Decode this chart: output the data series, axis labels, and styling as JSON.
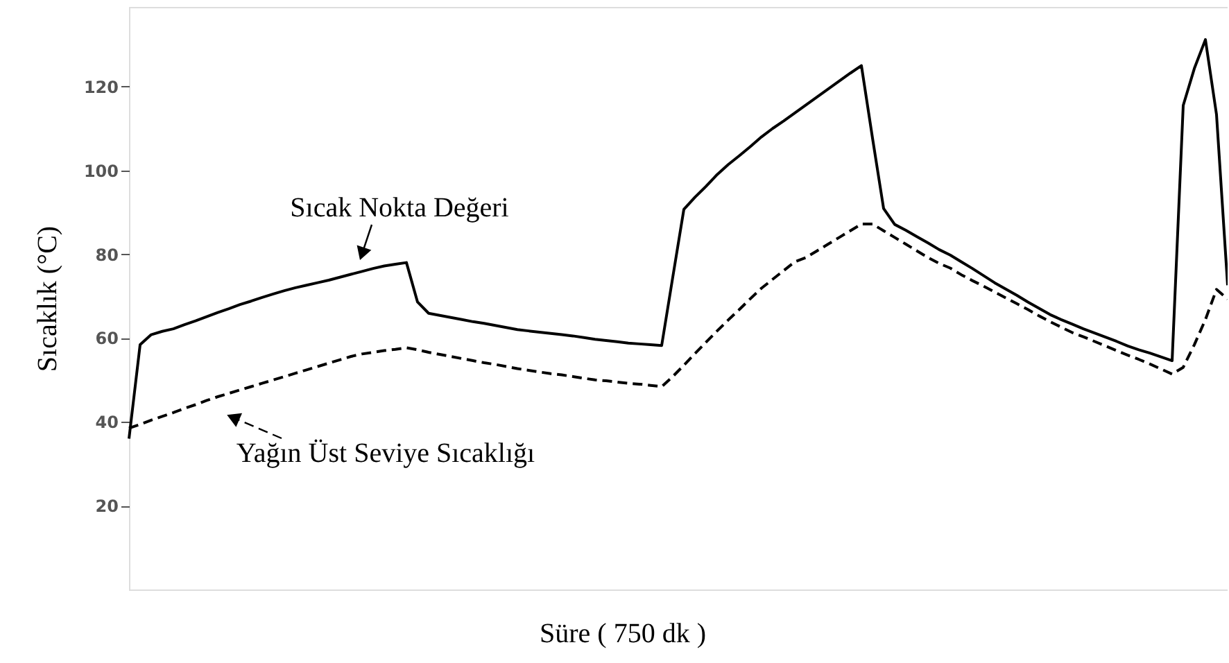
{
  "chart_data": {
    "type": "line",
    "xlabel": "Süre ( 750 dk )",
    "ylabel": "Sıcaklık  (°C)",
    "categories": [
      null,
      null,
      null,
      null,
      null,
      null,
      null,
      null,
      null,
      null,
      null,
      null,
      null,
      null,
      null,
      null,
      null,
      null,
      null,
      null,
      null,
      null,
      null,
      null,
      null,
      null,
      null,
      null,
      null,
      null,
      null,
      null,
      null,
      null,
      null,
      null,
      null,
      null,
      null,
      null,
      null,
      null,
      null,
      null,
      null,
      null,
      null,
      null,
      null,
      null,
      null,
      null,
      null,
      null,
      null,
      null,
      null,
      null,
      null,
      null,
      null,
      null,
      null,
      null,
      null,
      null,
      null,
      null,
      null,
      null,
      null,
      null,
      null,
      null,
      null,
      null,
      null,
      null,
      null,
      null,
      null,
      null,
      null,
      null,
      null,
      null,
      null,
      null,
      null,
      null,
      null,
      null,
      null,
      null,
      null,
      null,
      null,
      null,
      null,
      null
    ],
    "series": [
      {
        "name": "Sıcak Nokta Değeri",
        "color": "#000000",
        "line_style": "solid",
        "values": [
          36,
          58.4,
          60.8,
          61.6,
          62.2,
          63.2,
          64.1,
          65.1,
          66.1,
          67,
          68,
          68.8,
          69.7,
          70.5,
          71.3,
          72,
          72.6,
          73.2,
          73.8,
          74.5,
          75.2,
          75.9,
          76.6,
          77.2,
          77.6,
          78,
          68.6,
          65.9,
          65.4,
          64.9,
          64.4,
          63.9,
          63.5,
          63,
          62.5,
          62,
          61.7,
          61.4,
          61.1,
          60.8,
          60.5,
          60.1,
          59.7,
          59.4,
          59.1,
          58.8,
          58.6,
          58.4,
          58.2,
          74.5,
          90.7,
          93.6,
          96.2,
          99,
          101.4,
          103.5,
          105.7,
          108,
          110,
          111.8,
          113.7,
          115.6,
          117.5,
          119.4,
          121.3,
          123.2,
          125,
          107.7,
          90.9,
          87.1,
          85.7,
          84.2,
          82.7,
          81.1,
          79.8,
          78.2,
          76.6,
          74.9,
          73.2,
          71.7,
          70.2,
          68.6,
          67.1,
          65.6,
          64.4,
          63.3,
          62.2,
          61.2,
          60.2,
          59.2,
          58.1,
          57.2,
          56.4,
          55.5,
          54.6,
          115.5,
          124.3,
          131.2,
          113.3,
          72.6
        ]
      },
      {
        "name": "Yağın Üst Seviye Sıcaklığı",
        "color": "#000000",
        "line_style": "dashed",
        "values": [
          38.5,
          39.4,
          40.4,
          41.3,
          42.2,
          43.2,
          44.1,
          45.1,
          46,
          46.8,
          47.6,
          48.4,
          49.2,
          50,
          50.8,
          51.6,
          52.4,
          53.2,
          54,
          54.8,
          55.6,
          56.2,
          56.6,
          57,
          57.3,
          57.7,
          57.2,
          56.6,
          56.1,
          55.6,
          55.1,
          54.6,
          54.1,
          53.7,
          53.2,
          52.7,
          52.3,
          51.9,
          51.5,
          51.2,
          50.8,
          50.4,
          50,
          49.8,
          49.5,
          49.2,
          49,
          48.7,
          48.4,
          50.8,
          53.5,
          56.3,
          59,
          61.7,
          64.3,
          66.8,
          69.4,
          71.9,
          74,
          76.1,
          78.2,
          79.2,
          80.8,
          82.4,
          84,
          85.6,
          87.2,
          87.2,
          85.6,
          84,
          82.4,
          80.8,
          79.2,
          77.8,
          76.7,
          75.1,
          73.7,
          72.4,
          71,
          69.6,
          68.2,
          66.8,
          65.3,
          63.9,
          62.6,
          61.3,
          60.3,
          59.2,
          58.1,
          57,
          55.9,
          54.9,
          53.8,
          52.6,
          51.4,
          53,
          58.4,
          64.4,
          71.6,
          69.3
        ]
      }
    ],
    "ylim": [
      0,
      139
    ],
    "yticks": [
      20,
      40,
      60,
      80,
      100,
      120
    ],
    "grid": false,
    "tick_labels": "y",
    "marker": "none"
  }
}
